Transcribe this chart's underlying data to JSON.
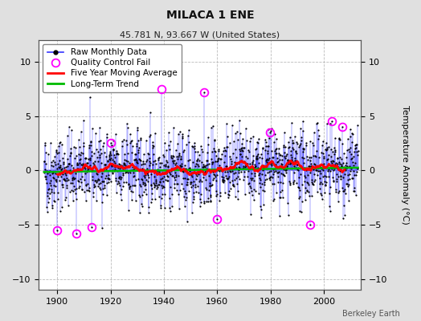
{
  "title": "MILACA 1 ENE",
  "subtitle": "45.781 N, 93.667 W (United States)",
  "ylabel": "Temperature Anomaly (°C)",
  "credit": "Berkeley Earth",
  "xlim": [
    1893,
    2014
  ],
  "ylim": [
    -11,
    12
  ],
  "yticks": [
    -10,
    -5,
    0,
    5,
    10
  ],
  "xticks": [
    1900,
    1920,
    1940,
    1960,
    1980,
    2000
  ],
  "bg_color": "#e0e0e0",
  "plot_bg_color": "#ffffff",
  "grid_color": "#bbbbbb",
  "seed": 42,
  "start_year": 1895.0,
  "end_year": 2012.9,
  "n_months": 1416,
  "raw_color": "#3333ff",
  "raw_marker_color": "#000000",
  "ma_color": "#ff0000",
  "trend_color": "#00bb00",
  "qc_color": "#ff00ff",
  "raw_linewidth": 0.5,
  "ma_linewidth": 1.8,
  "trend_linewidth": 1.8,
  "title_fontsize": 10,
  "subtitle_fontsize": 8,
  "tick_fontsize": 8,
  "legend_fontsize": 7.5
}
